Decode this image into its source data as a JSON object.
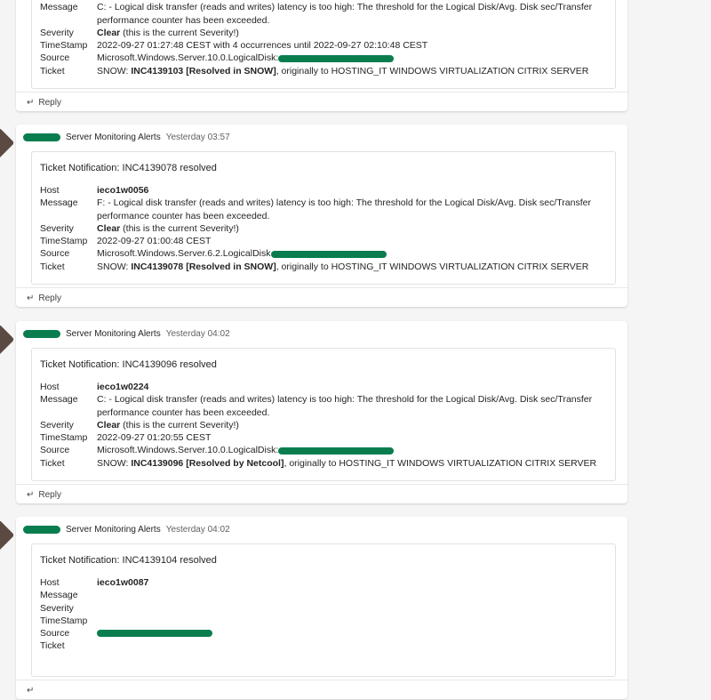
{
  "posts": [
    {
      "sender": "",
      "time": "",
      "title": "",
      "host": "",
      "message": "C: - Logical disk transfer (reads and writes) latency is too high: The threshold for the Logical Disk/Avg. Disk sec/Transfer performance counter has been exceeded.",
      "severity_bold": "Clear",
      "severity_rest": " (this is the current Severity!)",
      "timestamp": "2022-09-27 01:27:48 CEST with 4 occurrences until 2022-09-27 02:10:48 CEST",
      "source": "Microsoft.Windows.Server.10.0.LogicalDisk:",
      "ticket_prefix": "SNOW: ",
      "ticket_id": "INC4139103",
      "ticket_status": "[Resolved in SNOW]",
      "ticket_rest": ", originally to HOSTING_IT WINDOWS VIRTUALIZATION CITRIX SERVER",
      "reply": "Reply"
    },
    {
      "sender": "Server Monitoring Alerts",
      "time": "Yesterday 03:57",
      "title": "Ticket Notification: INC4139078 resolved",
      "host": "ieco1w0056",
      "message": "F: - Logical disk transfer (reads and writes) latency is too high: The threshold for the Logical Disk/Avg. Disk sec/Transfer performance counter has been exceeded.",
      "severity_bold": "Clear",
      "severity_rest": " (this is the current Severity!)",
      "timestamp": "2022-09-27 01:00:48 CEST",
      "source": "Microsoft.Windows.Server.6.2.LogicalDisk",
      "ticket_prefix": "SNOW: ",
      "ticket_id": "INC4139078",
      "ticket_status": "[Resolved in SNOW]",
      "ticket_rest": ", originally to HOSTING_IT WINDOWS VIRTUALIZATION CITRIX SERVER",
      "reply": "Reply"
    },
    {
      "sender": "Server Monitoring Alerts",
      "time": "Yesterday 04:02",
      "title": "Ticket Notification: INC4139096 resolved",
      "host": "ieco1w0224",
      "message": "C: - Logical disk transfer (reads and writes) latency is too high: The threshold for the Logical Disk/Avg. Disk sec/Transfer performance counter has been exceeded.",
      "severity_bold": "Clear",
      "severity_rest": " (this is the current Severity!)",
      "timestamp": "2022-09-27 01:20:55 CEST",
      "source": "Microsoft.Windows.Server.10.0.LogicalDisk:",
      "ticket_prefix": "SNOW: ",
      "ticket_id": "INC4139096",
      "ticket_status": "[Resolved by Netcool]",
      "ticket_rest": ", originally to HOSTING_IT WINDOWS VIRTUALIZATION CITRIX SERVER",
      "reply": "Reply"
    },
    {
      "sender": "Server Monitoring Alerts",
      "time": "Yesterday 04:02",
      "title": "Ticket Notification: INC4139104 resolved",
      "host": "ieco1w0087",
      "message": "",
      "severity_bold": "",
      "severity_rest": "",
      "timestamp": "",
      "source": "",
      "ticket_prefix": "",
      "ticket_id": "",
      "ticket_status": "",
      "ticket_rest": "",
      "reply": ""
    }
  ],
  "labels": {
    "host": "Host",
    "message": "Message",
    "severity": "Severity",
    "timestamp": "TimeStamp",
    "source": "Source",
    "ticket": "Ticket"
  }
}
